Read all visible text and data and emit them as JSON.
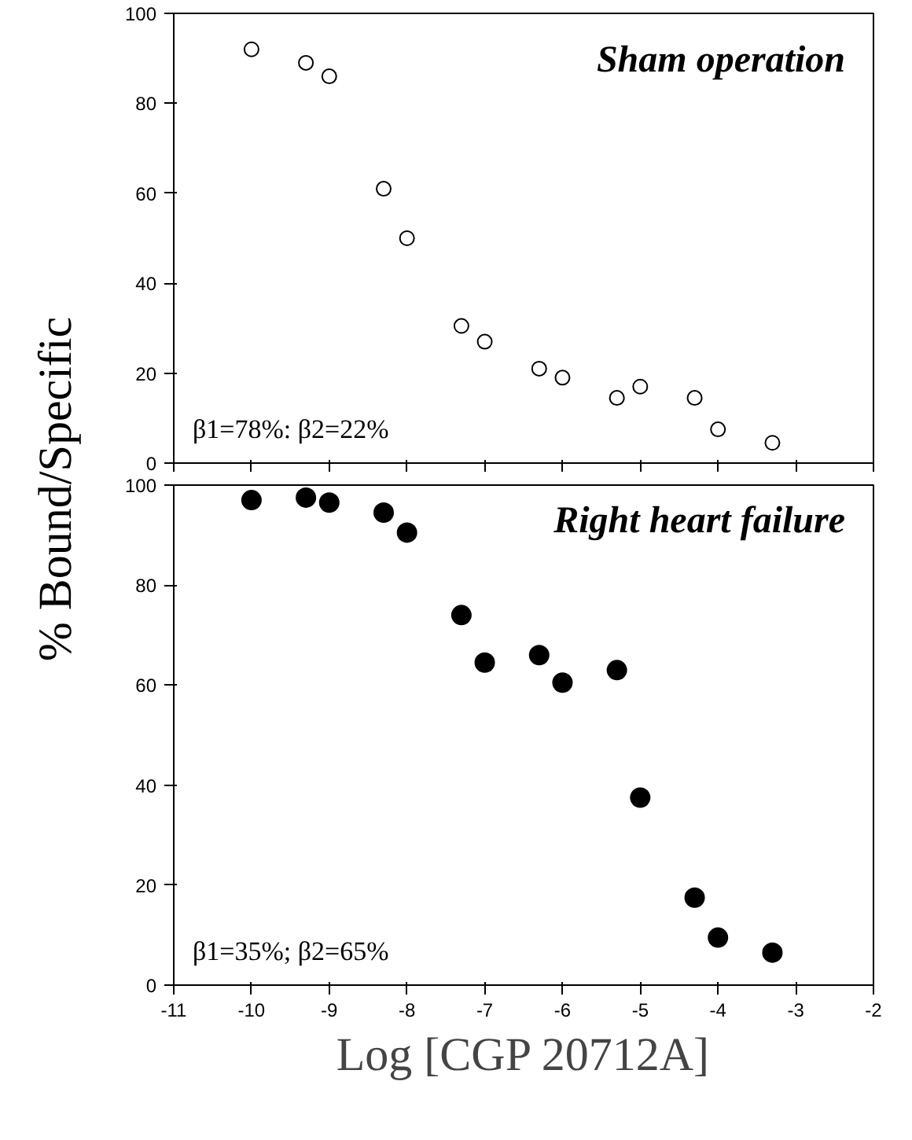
{
  "chart_data": [
    {
      "type": "scatter",
      "title": "Sham operation",
      "ylabel": "% Bound/Specific",
      "x": [
        -10,
        -9.3,
        -9,
        -8.3,
        -8,
        -7.3,
        -7,
        -6.3,
        -6,
        -5.3,
        -5,
        -4.3,
        -4,
        -3.3
      ],
      "series": [
        {
          "color": "#000000",
          "values": [
            92,
            89,
            86,
            61,
            50,
            30.5,
            27,
            21,
            19,
            14.5,
            17,
            14.5,
            7.5,
            4.5
          ]
        }
      ],
      "annotations": [
        "β1=78%: β2=22%"
      ],
      "xlim": [
        -11,
        -2
      ],
      "ylim": [
        0,
        100
      ],
      "xticks": [
        -11,
        -10,
        -9,
        -8,
        -7,
        -6,
        -5,
        -4,
        -3,
        -2
      ],
      "yticks": [
        0,
        20,
        40,
        60,
        80,
        100
      ],
      "tick_labels": "y",
      "grid": false,
      "marker": "circle"
    },
    {
      "type": "scatter",
      "title": "Right heart failure",
      "xlabel": "Log [CGP 20712A]",
      "x": [
        -10,
        -9.3,
        -9,
        -8.3,
        -8,
        -7.3,
        -7,
        -6.3,
        -6,
        -5.3,
        -5,
        -4.3,
        -4,
        -3.3
      ],
      "series": [
        {
          "color": "#000000",
          "values": [
            97,
            97.5,
            96.5,
            94.5,
            90.5,
            74,
            64.5,
            66,
            60.5,
            63,
            37.5,
            17.5,
            9.5,
            6.5
          ]
        }
      ],
      "annotations": [
        "β1=35%; β2=65%"
      ],
      "xlim": [
        -11,
        -2
      ],
      "ylim": [
        0,
        100
      ],
      "xticks": [
        -11,
        -10,
        -9,
        -8,
        -7,
        -6,
        -5,
        -4,
        -3,
        -2
      ],
      "yticks": [
        0,
        20,
        40,
        60,
        80,
        100
      ],
      "grid": false,
      "marker": "circle"
    }
  ]
}
